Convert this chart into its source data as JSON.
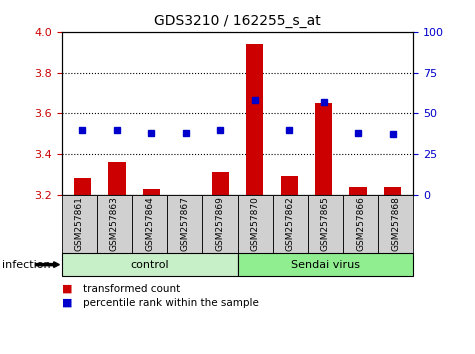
{
  "title": "GDS3210 / 162255_s_at",
  "samples": [
    "GSM257861",
    "GSM257863",
    "GSM257864",
    "GSM257867",
    "GSM257869",
    "GSM257870",
    "GSM257862",
    "GSM257865",
    "GSM257866",
    "GSM257868"
  ],
  "transformed_counts": [
    3.28,
    3.36,
    3.23,
    3.2,
    3.31,
    3.94,
    3.29,
    3.65,
    3.24,
    3.24
  ],
  "percentile_ranks": [
    40,
    40,
    38,
    38,
    40,
    58,
    40,
    57,
    38,
    37
  ],
  "groups": [
    {
      "label": "control",
      "start": 0,
      "end": 5,
      "color": "#c8f0c8"
    },
    {
      "label": "Sendai virus",
      "start": 5,
      "end": 10,
      "color": "#90ee90"
    }
  ],
  "infection_label": "infection",
  "ylim_left": [
    3.2,
    4.0
  ],
  "ylim_right": [
    0,
    100
  ],
  "yticks_left": [
    3.2,
    3.4,
    3.6,
    3.8,
    4.0
  ],
  "yticks_right": [
    0,
    25,
    50,
    75,
    100
  ],
  "bar_color": "#cc0000",
  "dot_color": "#0000cc",
  "bar_width": 0.5,
  "legend_items": [
    {
      "label": "transformed count",
      "color": "#cc0000"
    },
    {
      "label": "percentile rank within the sample",
      "color": "#0000cc"
    }
  ],
  "background_color": "#ffffff",
  "tick_label_color_left": "#cc0000",
  "tick_label_color_right": "#0000cc",
  "figsize": [
    4.75,
    3.54
  ],
  "dpi": 100
}
